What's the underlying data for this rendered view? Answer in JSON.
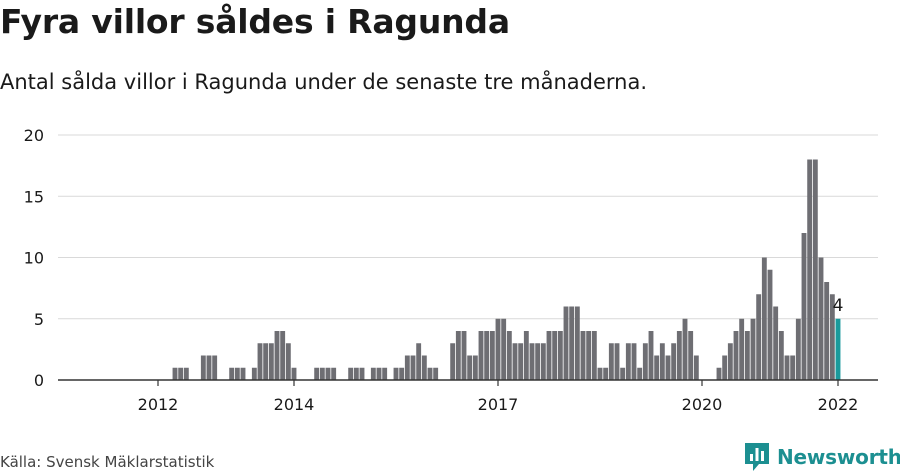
{
  "title": "Fyra villor såldes i Ragunda",
  "subtitle": "Antal sålda villor i Ragunda under de senaste tre månaderna.",
  "source": "Källa: Svensk Mäklarstatistik",
  "brand": {
    "name": "Newsworthy",
    "icon": "newsworthy-logo-icon",
    "color": "#1c8f91"
  },
  "colors": {
    "bar": "#6e6e73",
    "highlight": "#1a9a9c",
    "grid": "#d9d9d9",
    "axis": "#333333"
  },
  "chart_data": {
    "type": "bar",
    "x_start": "2011-01",
    "x_end": "2022-01",
    "ylim": [
      0,
      20
    ],
    "yticks": [
      0,
      5,
      10,
      15,
      20
    ],
    "xticks": [
      {
        "label": "2012",
        "value": "2012-01"
      },
      {
        "label": "2014",
        "value": "2014-01"
      },
      {
        "label": "2017",
        "value": "2017-01"
      },
      {
        "label": "2020",
        "value": "2020-01"
      },
      {
        "label": "2022",
        "value": "2022-01"
      }
    ],
    "values": [
      0,
      0,
      0,
      0,
      0,
      0,
      0,
      0,
      0,
      0,
      0,
      0,
      0,
      0,
      0,
      0,
      0,
      0,
      0,
      0,
      0,
      0,
      0,
      0,
      0,
      0,
      0,
      0,
      0,
      0,
      0,
      0,
      0,
      0,
      0,
      0,
      0,
      0,
      0,
      0,
      0,
      0,
      0,
      0,
      0,
      0,
      0,
      0,
      0,
      0,
      0,
      0,
      0,
      0,
      0,
      0,
      0,
      0,
      0,
      0,
      0,
      0,
      0,
      0,
      0,
      0,
      0,
      0,
      0,
      0,
      0,
      0,
      0,
      0,
      0,
      0,
      0,
      0,
      0,
      0,
      0,
      0,
      0,
      0,
      0,
      0,
      0,
      0,
      0,
      0,
      0,
      0,
      0,
      0,
      0,
      0,
      0,
      0,
      0,
      0,
      0,
      0,
      0,
      0,
      0,
      0,
      0,
      0,
      0,
      0,
      0,
      0,
      0,
      0,
      0,
      0,
      0,
      0,
      0,
      0,
      0,
      0,
      0,
      0,
      0,
      0,
      0,
      0,
      0,
      0,
      0,
      0,
      4
    ],
    "highlight_label": "4"
  }
}
